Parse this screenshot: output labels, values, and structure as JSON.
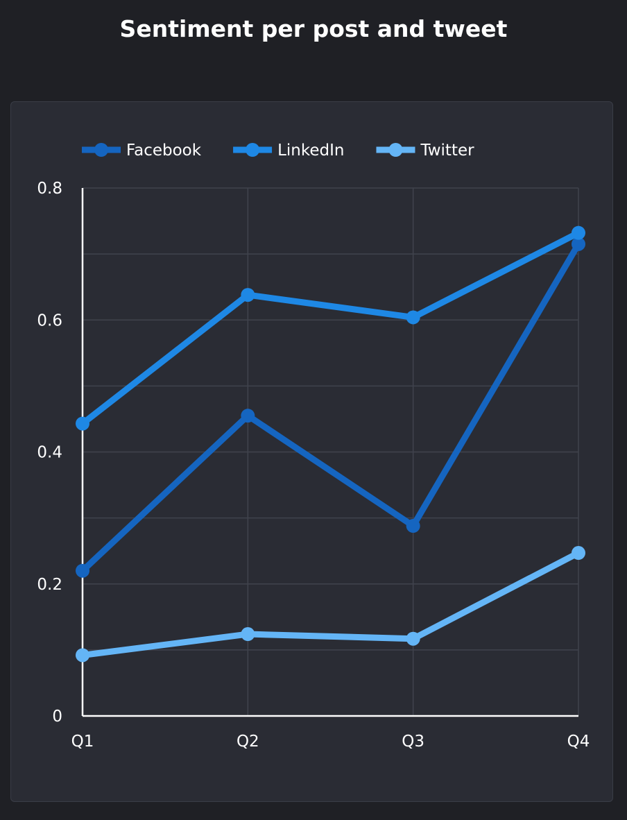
{
  "title": "Sentiment per post and tweet",
  "colors": {
    "background": "#1f2025",
    "card": "#2a2c34",
    "grid": "#40434d",
    "axis": "#ffffff",
    "text": "#ffffff"
  },
  "chart_data": {
    "type": "line",
    "title": "Sentiment per post and tweet",
    "xlabel": "",
    "ylabel": "",
    "categories": [
      "Q1",
      "Q2",
      "Q3",
      "Q4"
    ],
    "ylim": [
      0,
      0.8
    ],
    "y_ticks": [
      0,
      0.2,
      0.4,
      0.6,
      0.8
    ],
    "y_tick_labels": [
      "0",
      "0.2",
      "0.4",
      "0.6",
      "0.8"
    ],
    "grid": true,
    "legend_position": "top-left",
    "series": [
      {
        "name": "Facebook",
        "color": "#1565c0",
        "values": [
          0.22,
          0.455,
          0.288,
          0.715
        ]
      },
      {
        "name": "LinkedIn",
        "color": "#1e88e5",
        "values": [
          0.443,
          0.638,
          0.604,
          0.732
        ]
      },
      {
        "name": "Twitter",
        "color": "#64b5f6",
        "values": [
          0.092,
          0.124,
          0.117,
          0.247
        ]
      }
    ]
  }
}
